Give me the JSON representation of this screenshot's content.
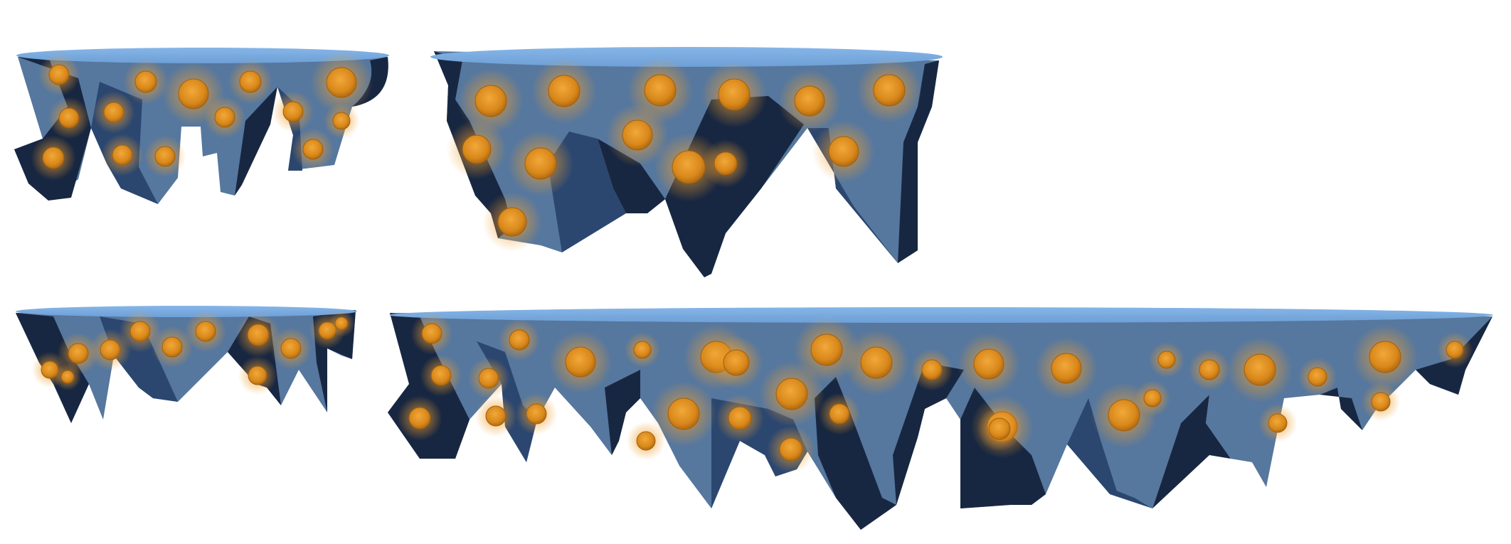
{
  "scene": {
    "type": "game-asset-sheet",
    "background": "#ffffff",
    "item": "floating-rock-platform",
    "platform_count": 4
  },
  "palette": {
    "top_surface": "#7aabe0",
    "rock_light": "#56779e",
    "rock_mid": "#2b4770",
    "rock_dark": "#182741",
    "ore_core": "#d9881a",
    "ore_glow": "#ffb23a"
  },
  "platforms": [
    {
      "id": "platform-1",
      "size": "small",
      "ore_count": 14
    },
    {
      "id": "platform-2",
      "size": "medium",
      "ore_count": 13
    },
    {
      "id": "platform-3",
      "size": "small-flat",
      "ore_count": 12
    },
    {
      "id": "platform-4",
      "size": "large",
      "ore_count": 34
    }
  ]
}
